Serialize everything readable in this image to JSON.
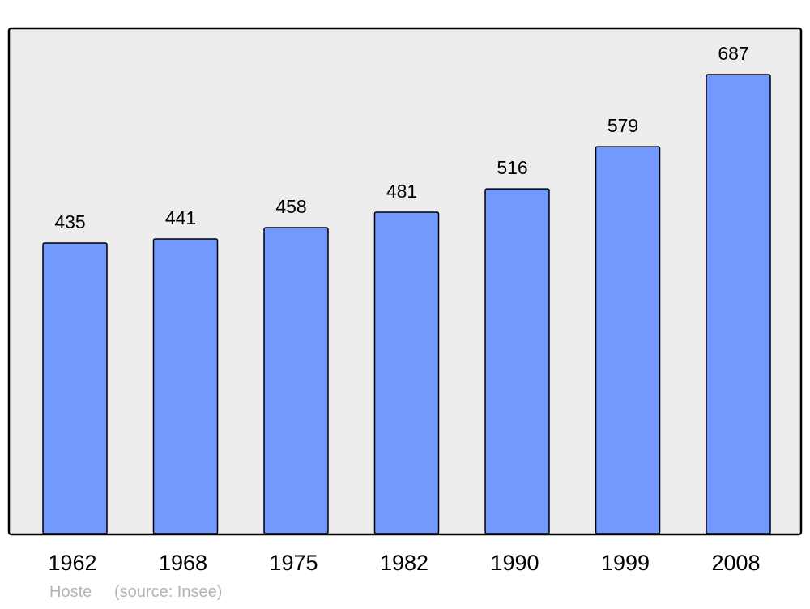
{
  "chart_data": {
    "type": "bar",
    "categories": [
      "1962",
      "1968",
      "1975",
      "1982",
      "1990",
      "1999",
      "2008"
    ],
    "values": [
      435,
      441,
      458,
      481,
      516,
      579,
      687
    ],
    "title": "",
    "xlabel": "",
    "ylabel": "",
    "ylim": [
      0,
      756
    ],
    "grid": false,
    "data_labels": true,
    "colors": {
      "bar": "#7399ff",
      "bar_stroke": "#000000",
      "plot_background": "#ededed",
      "footer_text": "#b3b3b3"
    }
  },
  "footer": {
    "place": "Hoste",
    "source": "(source: Insee)"
  }
}
